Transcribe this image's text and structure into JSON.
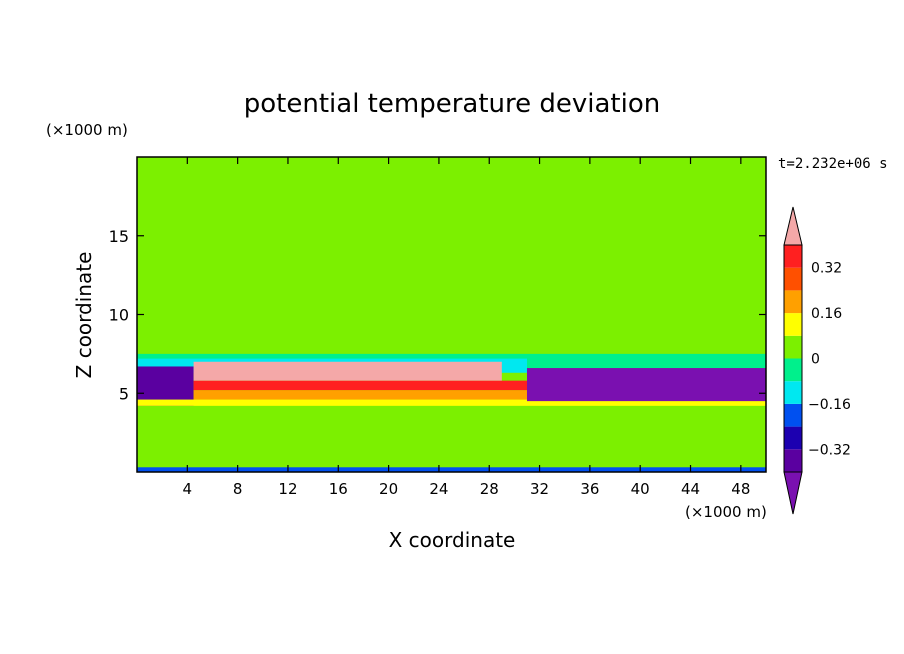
{
  "chart_data": {
    "type": "heatmap",
    "title": "potential temperature deviation",
    "xlabel": "X coordinate",
    "ylabel": "Z coordinate",
    "x_unit": "(×1000 m)",
    "y_unit": "(×1000 m)",
    "time_label": "t=2.232e+06 s",
    "xlim": [
      0,
      50
    ],
    "ylim": [
      0,
      20
    ],
    "x_ticks": [
      4,
      8,
      12,
      16,
      20,
      24,
      28,
      32,
      36,
      40,
      44,
      48
    ],
    "y_ticks": [
      5,
      10,
      15
    ],
    "x_tick_labels": [
      "4",
      "8",
      "12",
      "16",
      "20",
      "24",
      "28",
      "32",
      "36",
      "40",
      "44",
      "48"
    ],
    "y_tick_labels": [
      "5",
      "10",
      "15"
    ],
    "colorbar": {
      "levels": [
        -0.4,
        -0.32,
        -0.24,
        -0.16,
        -0.08,
        0,
        0.08,
        0.16,
        0.24,
        0.32,
        0.4
      ],
      "colors": [
        "#5a00a0",
        "#1c00b0",
        "#0050f0",
        "#00e8f0",
        "#00f08c",
        "#7cf000",
        "#ffff00",
        "#ffa000",
        "#ff5000",
        "#ff2020"
      ],
      "under_color": "#7a10b0",
      "over_color": "#f4a8a8",
      "tick_values": [
        -0.32,
        -0.16,
        0,
        0.16,
        0.32
      ],
      "tick_labels": [
        "-0.32",
        "-0.16",
        "0",
        "0.16",
        "0.32"
      ]
    },
    "regions": [
      {
        "x": [
          0,
          50
        ],
        "y": [
          0,
          20
        ],
        "value": 0.04
      },
      {
        "x": [
          0,
          50
        ],
        "y": [
          0.3,
          4.2
        ],
        "value": 0.06
      },
      {
        "x": [
          0,
          50
        ],
        "y": [
          7.8,
          13
        ],
        "value": 0.05
      },
      {
        "x": [
          0,
          50
        ],
        "y": [
          14,
          17
        ],
        "value": 0.06
      },
      {
        "x": [
          0,
          50
        ],
        "y": [
          6.6,
          7.5
        ],
        "value": -0.02
      },
      {
        "x": [
          0,
          31
        ],
        "y": [
          6.3,
          7.2
        ],
        "value": -0.12
      },
      {
        "x": [
          0,
          4.5
        ],
        "y": [
          4.2,
          6.7
        ],
        "value": -0.36
      },
      {
        "x": [
          0,
          50
        ],
        "y": [
          4.2,
          4.6
        ],
        "value": 0.12
      },
      {
        "x": [
          4.5,
          31
        ],
        "y": [
          4.6,
          5.2
        ],
        "value": 0.2
      },
      {
        "x": [
          4.5,
          31
        ],
        "y": [
          5.2,
          5.8
        ],
        "value": 0.36
      },
      {
        "x": [
          4.5,
          29
        ],
        "y": [
          5.8,
          7.0
        ],
        "value": 0.45
      },
      {
        "x": [
          31,
          50
        ],
        "y": [
          4.5,
          6.6
        ],
        "value": -0.45
      },
      {
        "x": [
          0,
          50
        ],
        "y": [
          0,
          0.3
        ],
        "value": -0.2
      }
    ]
  }
}
